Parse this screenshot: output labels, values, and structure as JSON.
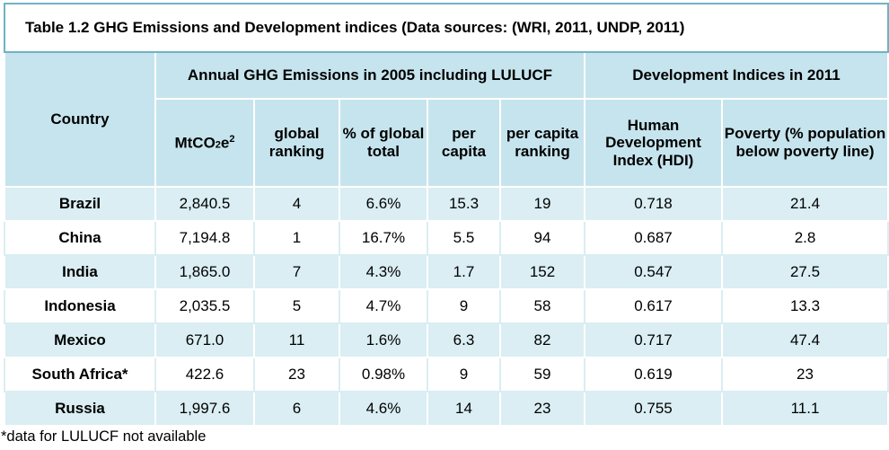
{
  "table": {
    "title": "Table 1.2 GHG Emissions and Development indices  (Data sources: (WRI, 2011, UNDP, 2011)",
    "col_groups": {
      "country": "Country",
      "emissions": "Annual GHG Emissions in 2005 including LULUCF",
      "development": "Development Indices in 2011"
    },
    "columns": {
      "mtco2e_base": "MtCO",
      "mtco2e_sub": "2",
      "mtco2e_mid": "e",
      "mtco2e_sup": "2",
      "global_ranking": "global ranking",
      "pct_global": "% of global total",
      "per_capita": "per capita",
      "per_capita_ranking": "per capita ranking",
      "hdi": "Human Development Index (HDI)",
      "poverty": "Poverty (% population below poverty line)"
    },
    "rows": [
      {
        "country": "Brazil",
        "mtco2e": "2,840.5",
        "rank": "4",
        "pct": "6.6%",
        "per_capita": "15.3",
        "pc_rank": "19",
        "hdi": "0.718",
        "poverty": "21.4"
      },
      {
        "country": "China",
        "mtco2e": "7,194.8",
        "rank": "1",
        "pct": "16.7%",
        "per_capita": "5.5",
        "pc_rank": "94",
        "hdi": "0.687",
        "poverty": "2.8"
      },
      {
        "country": "India",
        "mtco2e": "1,865.0",
        "rank": "7",
        "pct": "4.3%",
        "per_capita": "1.7",
        "pc_rank": "152",
        "hdi": "0.547",
        "poverty": "27.5"
      },
      {
        "country": "Indonesia",
        "mtco2e": "2,035.5",
        "rank": "5",
        "pct": "4.7%",
        "per_capita": "9",
        "pc_rank": "58",
        "hdi": "0.617",
        "poverty": "13.3"
      },
      {
        "country": "Mexico",
        "mtco2e": "671.0",
        "rank": "11",
        "pct": "1.6%",
        "per_capita": "6.3",
        "pc_rank": "82",
        "hdi": "0.717",
        "poverty": "47.4"
      },
      {
        "country": "South Africa*",
        "mtco2e": "422.6",
        "rank": "23",
        "pct": "0.98%",
        "per_capita": "9",
        "pc_rank": "59",
        "hdi": "0.619",
        "poverty": "23"
      },
      {
        "country": "Russia",
        "mtco2e": "1,997.6",
        "rank": "6",
        "pct": "4.6%",
        "per_capita": "14",
        "pc_rank": "23",
        "hdi": "0.755",
        "poverty": "11.1"
      }
    ]
  },
  "footnote": "*data for LULUCF not available",
  "colors": {
    "header_band": "#c6e4ed",
    "row_light": "#daeef3",
    "row_white": "#ffffff",
    "title_border": "#6fb3c4"
  }
}
